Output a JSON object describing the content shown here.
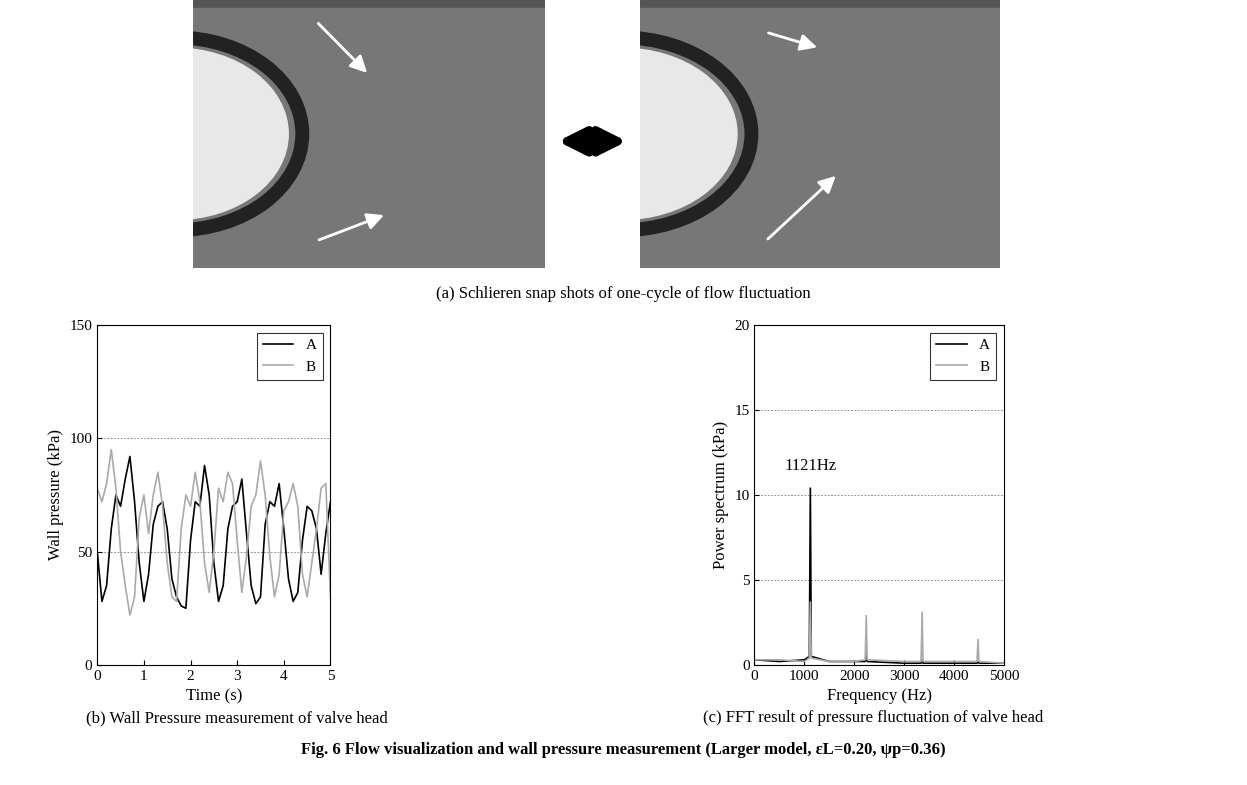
{
  "figure": {
    "caption": "Fig. 6 Flow visualization and wall pressure measurement (Larger model, εL=0.20, ψp=0.36)",
    "panel_a": {
      "caption": "(a) Schlieren snap shots of one-cycle of flow fluctuation"
    }
  },
  "chart_data": [
    {
      "type": "line",
      "caption": "(b) Wall Pressure measurement of valve head",
      "x_label": "Time (s)",
      "y_label": "Wall pressure (kPa)",
      "x": [
        0.0,
        0.1,
        0.2,
        0.3,
        0.4,
        0.5,
        0.6,
        0.7,
        0.8,
        0.9,
        1.0,
        1.1,
        1.2,
        1.3,
        1.4,
        1.5,
        1.6,
        1.7,
        1.8,
        1.9,
        2.0,
        2.1,
        2.2,
        2.3,
        2.4,
        2.5,
        2.6,
        2.7,
        2.8,
        2.9,
        3.0,
        3.1,
        3.2,
        3.3,
        3.4,
        3.5,
        3.6,
        3.7,
        3.8,
        3.9,
        4.0,
        4.1,
        4.2,
        4.3,
        4.4,
        4.5,
        4.6,
        4.7,
        4.8,
        4.9,
        5.0
      ],
      "series": [
        {
          "name": "A",
          "color": "#000000",
          "values": [
            50,
            28,
            35,
            60,
            75,
            70,
            82,
            92,
            72,
            45,
            28,
            40,
            62,
            70,
            72,
            60,
            38,
            30,
            26,
            25,
            55,
            72,
            70,
            88,
            75,
            45,
            28,
            35,
            60,
            70,
            72,
            82,
            58,
            35,
            27,
            30,
            62,
            72,
            70,
            80,
            60,
            38,
            28,
            32,
            55,
            70,
            68,
            60,
            40,
            58,
            72
          ]
        },
        {
          "name": "B",
          "color": "#aaaaaa",
          "values": [
            78,
            72,
            80,
            95,
            78,
            50,
            35,
            22,
            30,
            65,
            75,
            58,
            75,
            85,
            70,
            45,
            30,
            28,
            60,
            75,
            70,
            85,
            72,
            45,
            32,
            50,
            78,
            72,
            85,
            80,
            55,
            32,
            48,
            70,
            75,
            90,
            75,
            48,
            30,
            40,
            68,
            72,
            80,
            70,
            40,
            30,
            45,
            60,
            78,
            80,
            30
          ]
        }
      ],
      "xlim": [
        0,
        5
      ],
      "xticks": [
        0,
        1,
        2,
        3,
        4,
        5
      ],
      "ylim": [
        0,
        150
      ],
      "yticks": [
        0,
        50,
        100,
        150
      ],
      "grid": true,
      "legend": "upper right"
    },
    {
      "type": "line",
      "caption": "(c) FFT result of pressure fluctuation of valve head",
      "x_label": "Frequency (Hz)",
      "y_label": "Power spectrum (kPa)",
      "x": [
        0,
        500,
        1000,
        1100,
        1121,
        1140,
        1500,
        2000,
        2220,
        2242,
        2260,
        3000,
        3340,
        3363,
        3380,
        4000,
        4460,
        4484,
        4500,
        5000
      ],
      "series": [
        {
          "name": "A",
          "color": "#000000",
          "values": [
            0.3,
            0.2,
            0.3,
            0.5,
            10.4,
            0.5,
            0.2,
            0.2,
            0.2,
            0.6,
            0.2,
            0.1,
            0.1,
            0.3,
            0.1,
            0.1,
            0.1,
            0.2,
            0.1,
            0.1
          ]
        },
        {
          "name": "B",
          "color": "#aaaaaa",
          "values": [
            0.3,
            0.3,
            0.2,
            0.4,
            3.7,
            0.4,
            0.2,
            0.2,
            0.3,
            2.9,
            0.3,
            0.2,
            0.2,
            3.1,
            0.2,
            0.2,
            0.2,
            1.5,
            0.2,
            0.1
          ]
        }
      ],
      "xlim": [
        0,
        5000
      ],
      "xticks": [
        0,
        1000,
        2000,
        3000,
        4000,
        5000
      ],
      "ylim": [
        0,
        20
      ],
      "yticks": [
        0,
        5,
        10,
        15,
        20
      ],
      "annotations": [
        {
          "text": "1121Hz",
          "x": 1121,
          "y": 10.4
        }
      ],
      "grid": true,
      "legend": "upper right"
    }
  ]
}
